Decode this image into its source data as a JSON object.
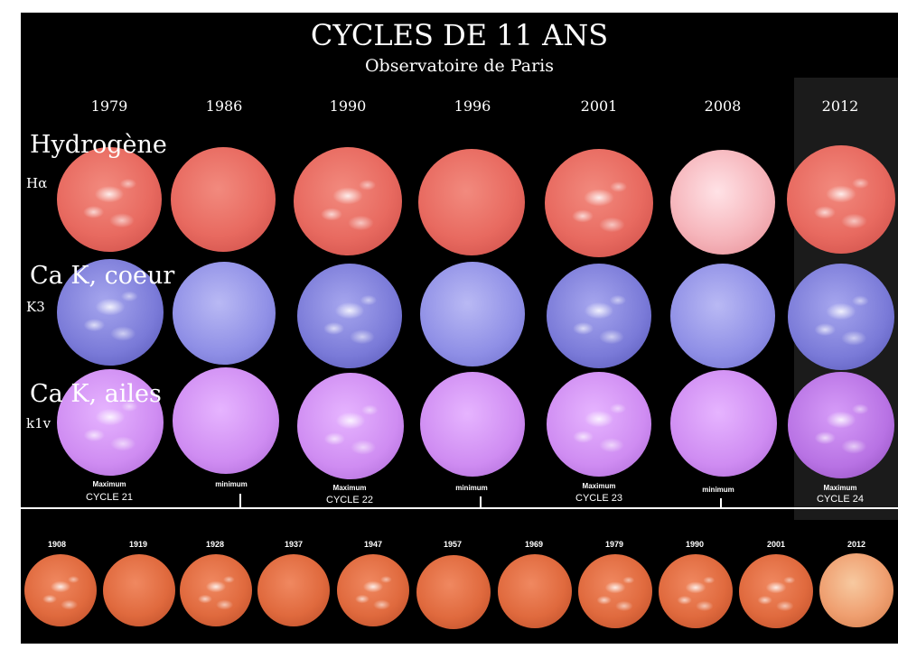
{
  "title": "CYCLES DE 11 ANS",
  "subtitle": "Observatoire de Paris",
  "years": [
    "1979",
    "1986",
    "1990",
    "1996",
    "2001",
    "2008",
    "2012"
  ],
  "rows": [
    {
      "name": "Hydrogène",
      "sub": "Hα"
    },
    {
      "name": "Ca K, coeur",
      "sub": "K3"
    },
    {
      "name": "Ca K, ailes",
      "sub": "k1v"
    }
  ],
  "cycle_labels": [
    {
      "small": "Maximum",
      "big": "CYCLE 21"
    },
    {
      "small": "minimum",
      "big": ""
    },
    {
      "small": "Maximum",
      "big": "CYCLE 22"
    },
    {
      "small": "minimum",
      "big": ""
    },
    {
      "small": "Maximum",
      "big": "CYCLE 23"
    },
    {
      "small": "minimum",
      "big": ""
    },
    {
      "small": "Maximum",
      "big": "CYCLE 24"
    }
  ],
  "historical_years": [
    "1908",
    "1919",
    "1928",
    "1937",
    "1947",
    "1957",
    "1969",
    "1979",
    "1990",
    "2001",
    "2012"
  ],
  "colors": {
    "background": "#000000",
    "halpha": "#e86a60",
    "k3": "#8f8fe6",
    "k1v": "#cf8cf2",
    "historical": "#e06a3e"
  }
}
